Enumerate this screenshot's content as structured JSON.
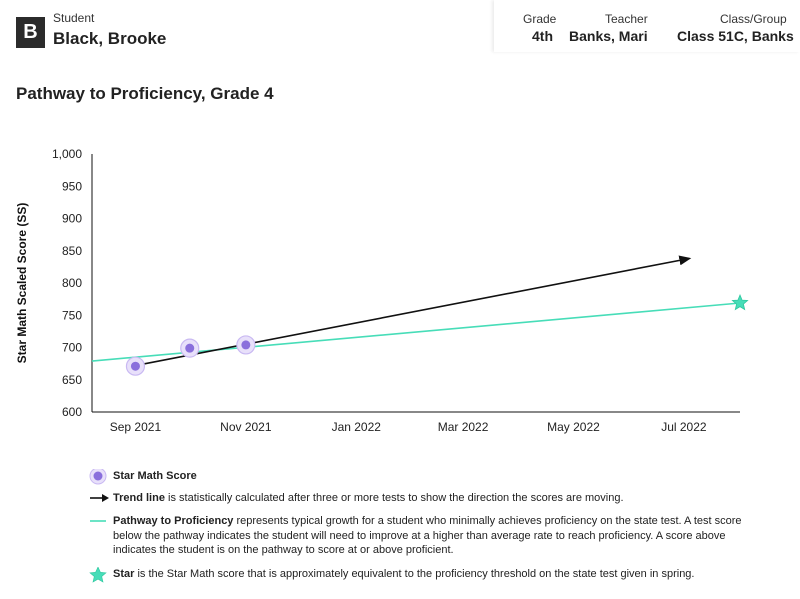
{
  "header": {
    "badge": "B",
    "student_label": "Student",
    "student_name": "Black, Brooke",
    "grade_label": "Grade",
    "grade_value": "4th",
    "teacher_label": "Teacher",
    "teacher_value": "Banks, Mari",
    "class_label": "Class/Group",
    "class_value": "Class 51C, Banks"
  },
  "page_title": "Pathway to Proficiency, Grade 4",
  "chart_data": {
    "type": "line",
    "title": "Pathway to Proficiency, Grade 4",
    "xlabel": "",
    "ylabel": "Star Math Scaled Score (SS)",
    "ylim": [
      600,
      1000
    ],
    "yticks": [
      600,
      650,
      700,
      750,
      800,
      850,
      900,
      950,
      1000
    ],
    "ytick_labels": [
      "600",
      "650",
      "700",
      "750",
      "800",
      "850",
      "900",
      "950",
      "1,000"
    ],
    "xticks": [
      "2021-09-01",
      "2021-11-01",
      "2022-01-01",
      "2022-03-01",
      "2022-05-01",
      "2022-07-01"
    ],
    "xtick_labels": [
      "Sep 2021",
      "Nov 2021",
      "Jan 2022",
      "Mar 2022",
      "May 2022",
      "Jul 2022"
    ],
    "xlim": [
      "2021-08-08",
      "2022-08-01"
    ],
    "grid": false,
    "series": [
      {
        "name": "Star Math Score",
        "kind": "points",
        "color": "#8a6fdc",
        "points": [
          {
            "x": "2021-09-01",
            "y": 671
          },
          {
            "x": "2021-10-01",
            "y": 699
          },
          {
            "x": "2021-11-01",
            "y": 704
          }
        ]
      },
      {
        "name": "Trend line",
        "kind": "arrow",
        "color": "#111111",
        "points": [
          {
            "x": "2021-09-01",
            "y": 672
          },
          {
            "x": "2022-07-04",
            "y": 838
          }
        ]
      },
      {
        "name": "Pathway to Proficiency",
        "kind": "line",
        "color": "#47ddb8",
        "points": [
          {
            "x": "2021-08-08",
            "y": 679
          },
          {
            "x": "2022-08-01",
            "y": 769
          }
        ]
      },
      {
        "name": "Star",
        "kind": "star",
        "color": "#47ddb8",
        "points": [
          {
            "x": "2022-08-01",
            "y": 769
          }
        ]
      }
    ]
  },
  "legend": {
    "score_label": "Star Math Score",
    "trend_label": "Trend line",
    "trend_text": " is statistically calculated after three or more tests to show the direction the scores are moving.",
    "pathway_label": "Pathway to Proficiency",
    "pathway_text": " represents typical growth for a student who minimally achieves proficiency on the state test. A test score below the pathway indicates the student will need to improve at a higher than average rate to reach proficiency. A score above indicates the student is on the pathway to score at or above proficient.",
    "star_label": "Star",
    "star_text": " is the Star Math score that is approximately equivalent to the proficiency threshold on the state test given in spring."
  }
}
